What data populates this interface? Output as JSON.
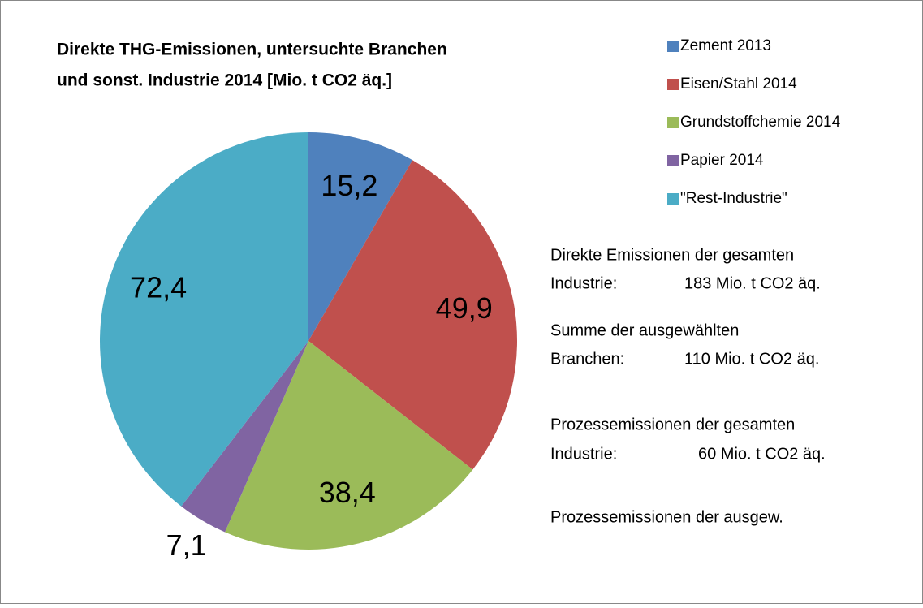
{
  "chart_data": {
    "type": "pie",
    "title": [
      "Direkte THG-Emissionen, untersuchte Branchen",
      "und sonst. Industrie 2014 [Mio. t CO2 äq.]"
    ],
    "categories": [
      "Zement 2013",
      "Eisen/Stahl 2014",
      "Grundstoffchemie 2014",
      "Papier 2014",
      "\"Rest-Industrie\""
    ],
    "values": [
      15.2,
      49.9,
      38.4,
      7.1,
      72.4
    ],
    "value_labels": [
      "15,2",
      "49,9",
      "38,4",
      "7,1",
      "72,4"
    ],
    "colors": [
      "#4f81bd",
      "#c0504d",
      "#9bbb59",
      "#8064a2",
      "#4bacc6"
    ],
    "legend": "right",
    "annotations": [
      [
        "Direkte Emissionen der gesamten"
      ],
      [
        "Industrie:",
        "183 Mio. t CO2 äq."
      ],
      [
        "Summe der  ausgewählten"
      ],
      [
        "Branchen:",
        "110 Mio. t CO2 äq."
      ],
      [
        "Prozessemissionen  der gesamten"
      ],
      [
        "Industrie:",
        "60 Mio. t CO2 äq."
      ],
      [
        "Prozessemissionen der ausgew."
      ]
    ]
  }
}
